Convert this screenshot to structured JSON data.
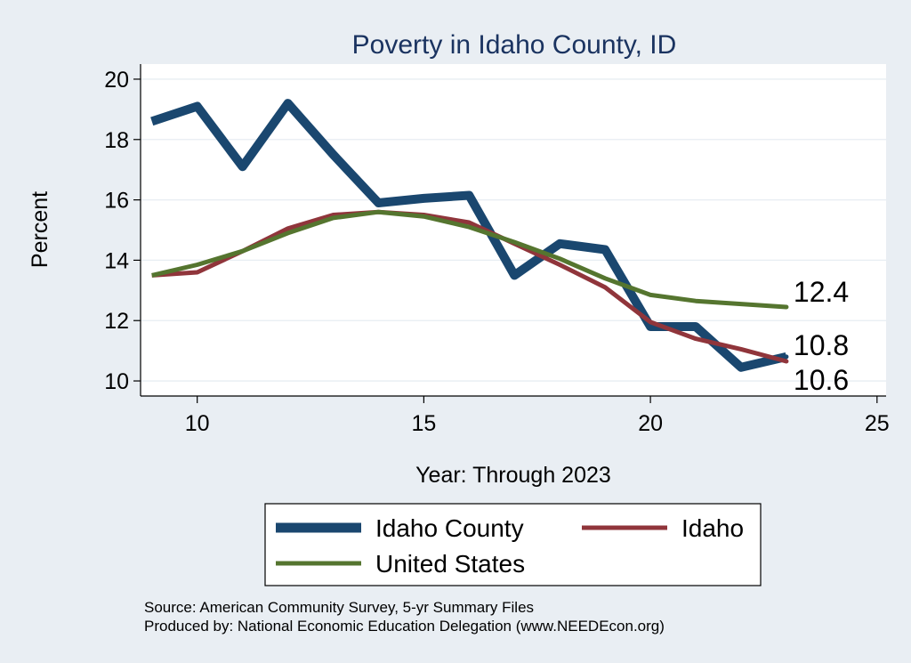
{
  "chart_data": {
    "type": "line",
    "title": "Poverty in Idaho County, ID",
    "xlabel": "Year: Through 2023",
    "ylabel": "Percent",
    "xlim": [
      8.75,
      25.2
    ],
    "ylim": [
      9.5,
      20.5
    ],
    "xticks": [
      10,
      15,
      20,
      25
    ],
    "yticks": [
      10,
      12,
      14,
      16,
      18,
      20
    ],
    "grid": true,
    "legend_position": "bottom",
    "x": [
      9,
      10,
      11,
      12,
      13,
      14,
      15,
      16,
      17,
      18,
      19,
      20,
      21,
      22,
      23
    ],
    "series": [
      {
        "name": "Idaho County",
        "color": "#1a476f",
        "values": [
          18.6,
          19.1,
          17.1,
          19.2,
          17.5,
          15.9,
          16.05,
          16.15,
          13.5,
          14.55,
          14.35,
          11.8,
          11.8,
          10.45,
          10.8
        ],
        "end_label": "10.8"
      },
      {
        "name": "Idaho",
        "color": "#90353b",
        "values": [
          13.5,
          13.6,
          14.3,
          15.05,
          15.5,
          15.6,
          15.5,
          15.25,
          14.55,
          13.85,
          13.1,
          11.95,
          11.4,
          11.05,
          10.65
        ],
        "end_label": "10.6"
      },
      {
        "name": "United States",
        "color": "#55752f",
        "values": [
          13.5,
          13.85,
          14.3,
          14.9,
          15.4,
          15.6,
          15.45,
          15.1,
          14.6,
          14.05,
          13.4,
          12.85,
          12.65,
          12.55,
          12.45
        ],
        "end_label": "12.4"
      }
    ]
  },
  "notes": {
    "source": "Source: American Community Survey, 5-yr Summary Files",
    "produced_by": "Produced by: National Economic Education Delegation (www.NEEDEcon.org)"
  }
}
